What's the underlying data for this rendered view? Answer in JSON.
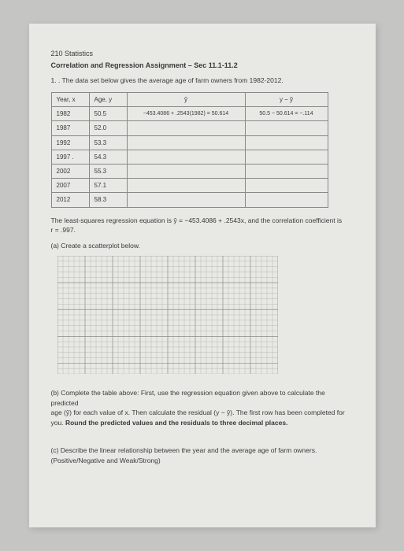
{
  "course": "210 Statistics",
  "title": "Correlation and Regression Assignment – Sec 11.1-11.2",
  "q1": "1. .  The data set below gives the average age of farm owners from 1982-2012.",
  "table": {
    "headers": {
      "year": "Year, x",
      "age": "Age, y",
      "yhat": "ŷ",
      "resid": "y − ŷ"
    },
    "row1_calc": {
      "yhat": "−453.4086 + .2543(1982) = 50.614",
      "resid": "50.5 − 50.614 = −.114"
    },
    "rows": [
      {
        "year": "1982",
        "age": "50.5"
      },
      {
        "year": "1987",
        "age": "52.0"
      },
      {
        "year": "1992",
        "age": "53.3"
      },
      {
        "year": "1997  .",
        "age": "54.3"
      },
      {
        "year": "2002",
        "age": "55.3"
      },
      {
        "year": "2007",
        "age": "57.1"
      },
      {
        "year": "2012",
        "age": "58.3"
      }
    ]
  },
  "eqn_l1": "The least-squares regression equation is ŷ = −453.4086 + .2543x, and the correlation coefficient is",
  "eqn_l2": "r = .997.",
  "part_a": "(a) Create a scatterplot below.",
  "grid": {
    "cols": 40,
    "rows": 22,
    "stroke": "#9a9a95",
    "majorStroke": "#7a7a75"
  },
  "part_b_1": "(b) Complete the table above:  First, use the regression equation given above to calculate the predicted",
  "part_b_2": "age (ŷ) for each value of x.  Then calculate the residual (y − ŷ). The first row has been completed for",
  "part_b_3a": "you. ",
  "part_b_3b": "Round the predicted values and the residuals to three decimal places.",
  "part_c_1": "(c) Describe the linear relationship between the year and the average age of farm owners.",
  "part_c_2": "(Positive/Negative and Weak/Strong)"
}
